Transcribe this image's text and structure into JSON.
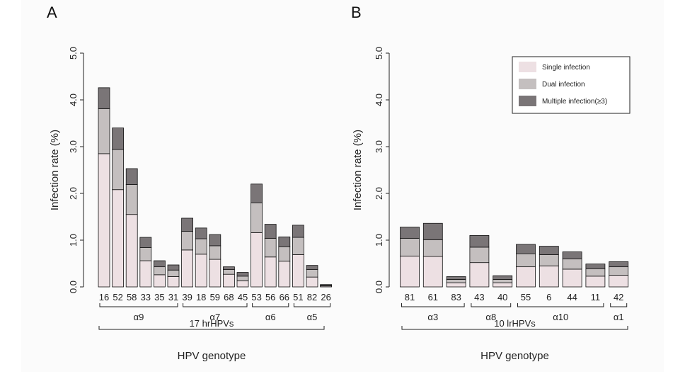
{
  "colors": {
    "single": "#ede0e3",
    "dual": "#c4bfbf",
    "multiple": "#7a7577",
    "stroke": "#111111",
    "background": "#fbfbfb"
  },
  "legend": {
    "position": "top-right",
    "items": [
      {
        "key": "single",
        "label": "Single infection"
      },
      {
        "key": "dual",
        "label": "Dual infection"
      },
      {
        "key": "multiple",
        "label": "Multiple infection(≥3)"
      }
    ]
  },
  "chart_data": [
    {
      "panel": "A",
      "type": "bar",
      "stacked": true,
      "ylabel": "Infection rate (%)",
      "xlabel": "HPV genotype",
      "ylim": [
        0,
        5
      ],
      "yticks": [
        "0.0",
        "1.0",
        "2.0",
        "3.0",
        "4.0",
        "5.0"
      ],
      "categories": [
        "16",
        "52",
        "58",
        "33",
        "35",
        "31",
        "39",
        "18",
        "59",
        "68",
        "45",
        "53",
        "56",
        "66",
        "51",
        "82",
        "26"
      ],
      "series": [
        {
          "name": "Single infection",
          "values": [
            2.85,
            2.08,
            1.55,
            0.56,
            0.26,
            0.22,
            0.79,
            0.7,
            0.59,
            0.27,
            0.13,
            1.16,
            0.64,
            0.55,
            0.69,
            0.21,
            0.02
          ]
        },
        {
          "name": "Dual infection",
          "values": [
            0.96,
            0.86,
            0.64,
            0.28,
            0.17,
            0.14,
            0.4,
            0.33,
            0.29,
            0.1,
            0.1,
            0.64,
            0.4,
            0.31,
            0.37,
            0.16,
            0.01
          ]
        },
        {
          "name": "Multiple infection(≥3)",
          "values": [
            0.45,
            0.46,
            0.34,
            0.22,
            0.13,
            0.11,
            0.28,
            0.23,
            0.24,
            0.06,
            0.08,
            0.4,
            0.3,
            0.21,
            0.26,
            0.09,
            0.02
          ]
        }
      ],
      "groups": [
        {
          "label": "α9",
          "start": 0,
          "end": 5
        },
        {
          "label": "α7",
          "start": 6,
          "end": 10
        },
        {
          "label": "α6",
          "start": 11,
          "end": 13
        },
        {
          "label": "α5",
          "start": 14,
          "end": 16
        }
      ],
      "group_total": "17 hrHPVs"
    },
    {
      "panel": "B",
      "type": "bar",
      "stacked": true,
      "ylabel": "Infection rate (%)",
      "xlabel": "HPV genotype",
      "ylim": [
        0,
        5
      ],
      "yticks": [
        "0.0",
        "1.0",
        "2.0",
        "3.0",
        "4.0",
        "5.0"
      ],
      "categories": [
        "81",
        "61",
        "83",
        "43",
        "40",
        "55",
        "6",
        "44",
        "11",
        "42"
      ],
      "series": [
        {
          "name": "Single infection",
          "values": [
            0.66,
            0.65,
            0.09,
            0.52,
            0.09,
            0.43,
            0.45,
            0.38,
            0.23,
            0.25
          ]
        },
        {
          "name": "Dual infection",
          "values": [
            0.38,
            0.36,
            0.07,
            0.33,
            0.07,
            0.28,
            0.24,
            0.22,
            0.16,
            0.18
          ]
        },
        {
          "name": "Multiple infection(≥3)",
          "values": [
            0.24,
            0.35,
            0.06,
            0.25,
            0.08,
            0.2,
            0.18,
            0.15,
            0.1,
            0.11
          ]
        }
      ],
      "groups": [
        {
          "label": "α3",
          "start": 0,
          "end": 2
        },
        {
          "label": "α8",
          "start": 3,
          "end": 4
        },
        {
          "label": "α10",
          "start": 5,
          "end": 8
        },
        {
          "label": "α1",
          "start": 9,
          "end": 9
        }
      ],
      "group_total": "10 lrHPVs"
    }
  ]
}
